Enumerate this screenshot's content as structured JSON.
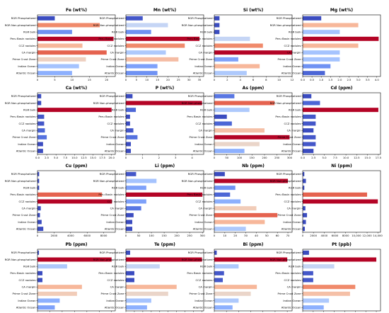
{
  "chart_data": {
    "type": "bar",
    "orientation": "horizontal",
    "categories": [
      "RGR Phosphatized",
      "RGR Non-phosphatized",
      "RGR bulk",
      "Peru Basin nodules",
      "CCZ nodules",
      "CA margin",
      "Prime Crust Zone",
      "Indian Ocean",
      "Atlantic Ocean"
    ],
    "panels": [
      {
        "title": "Fe (wt%)",
        "xlim": [
          0,
          22.5
        ],
        "ticks": [
          0,
          5,
          10,
          15,
          20
        ],
        "tick_labels": [
          "0",
          "5",
          "10",
          "15",
          "20"
        ],
        "values": [
          5,
          18,
          10,
          22,
          13,
          20,
          14,
          12,
          10
        ],
        "colors": [
          "#3b4cc0",
          "#f08a6b",
          "#6f92f3",
          "#b40426",
          "#f7b79a",
          "#e5634f",
          "#eed0c0",
          "#a5c3fe",
          "#8db0fe"
        ]
      },
      {
        "title": "Mn (wt%)",
        "xlim": [
          0,
          37
        ],
        "ticks": [
          0,
          5,
          10,
          15,
          20,
          25,
          30,
          35
        ],
        "tick_labels": [
          "0",
          "5",
          "10",
          "15",
          "20",
          "25",
          "30",
          "35"
        ],
        "values": [
          8,
          20,
          12,
          35,
          28,
          19,
          25,
          15,
          15
        ],
        "colors": [
          "#4457c9",
          "#c5d5f5",
          "#6f92f3",
          "#b40426",
          "#f08a6b",
          "#aec9fc",
          "#f5bca4",
          "#7ea1fa",
          "#6f92f3"
        ]
      },
      {
        "title": "Si (wt%)",
        "xlim": [
          0,
          12
        ],
        "ticks": [
          0,
          2,
          4,
          6,
          8,
          10,
          12
        ],
        "tick_labels": [
          "0",
          "2",
          "4",
          "6",
          "8",
          "10",
          "12"
        ],
        "values": [
          0.8,
          0.8,
          0.8,
          5.5,
          7.5,
          12,
          3.7,
          7,
          5
        ],
        "colors": [
          "#3b4cc0",
          "#3b4cc0",
          "#3b4cc0",
          "#c5d5f5",
          "#f08a6b",
          "#b40426",
          "#7ea1fa",
          "#f7b79a",
          "#aec9fc"
        ]
      },
      {
        "title": "Mg (wt%)",
        "xlim": [
          0,
          4.2
        ],
        "ticks": [
          0,
          0.5,
          1.0,
          1.5,
          2.0,
          2.5,
          3.0,
          3.5,
          4.0
        ],
        "tick_labels": [
          "0.0",
          "0.5",
          "1.0",
          "1.5",
          "2.0",
          "2.5",
          "3.0",
          "3.5",
          "4.0"
        ],
        "values": [
          1.0,
          3.0,
          2.0,
          4.1,
          3.0,
          2.0,
          2.0,
          1.5,
          1.2
        ],
        "colors": [
          "#3b4cc0",
          "#f7b79a",
          "#a5c3fe",
          "#b40426",
          "#f7b79a",
          "#a5c3fe",
          "#a5c3fe",
          "#6f92f3",
          "#4c66d6"
        ]
      },
      {
        "title": "Ca (wt%)",
        "xlim": [
          0,
          21
        ],
        "ticks": [
          0,
          2.5,
          5.0,
          7.5,
          10.0,
          12.5,
          15.0,
          17.5,
          20.0
        ],
        "tick_labels": [
          "0.0",
          "2.5",
          "5.0",
          "7.5",
          "10.0",
          "12.5",
          "15.0",
          "17.5",
          "20.0"
        ],
        "values": [
          1.0,
          1.0,
          20,
          1.8,
          1.8,
          2.0,
          2.5,
          1.5,
          1.5
        ],
        "colors": [
          "#3b4cc0",
          "#3b4cc0",
          "#b40426",
          "#4457c9",
          "#4457c9",
          "#4c66d6",
          "#5572df",
          "#3b4cc0",
          "#3b4cc0"
        ]
      },
      {
        "title": "P (wt%)",
        "xlim": [
          0,
          4.7
        ],
        "ticks": [
          0,
          1,
          2,
          3,
          4
        ],
        "tick_labels": [
          "0",
          "1",
          "2",
          "3",
          "4"
        ],
        "values": [
          0.4,
          4.6,
          0.6,
          0.25,
          0.25,
          0.45,
          0.7,
          0.3,
          0.3
        ],
        "colors": [
          "#3b4cc0",
          "#b40426",
          "#4c66d6",
          "#3b4cc0",
          "#3b4cc0",
          "#4457c9",
          "#5572df",
          "#3b4cc0",
          "#3b4cc0"
        ]
      },
      {
        "title": "As (ppm)",
        "xlim": [
          0,
          310
        ],
        "ticks": [
          0,
          50,
          100,
          150,
          200,
          250,
          300
        ],
        "tick_labels": [
          "0",
          "50",
          "100",
          "150",
          "200",
          "250",
          "300"
        ],
        "values": [
          80,
          240,
          140,
          50,
          70,
          200,
          300,
          180,
          120
        ],
        "colors": [
          "#5977e3",
          "#e5634f",
          "#aec9fc",
          "#3b4cc0",
          "#4c66d6",
          "#f5c0a7",
          "#b40426",
          "#ead5c9",
          "#8db0fe"
        ]
      },
      {
        "title": "Cd (ppm)",
        "xlim": [
          0,
          18
        ],
        "ticks": [
          0,
          2.5,
          5.0,
          7.5,
          10.0,
          12.5,
          15.0,
          17.5
        ],
        "tick_labels": [
          "0.0",
          "2.5",
          "5.0",
          "7.5",
          "10.0",
          "12.5",
          "15.0",
          "17.5"
        ],
        "values": [
          2,
          4,
          17.5,
          3,
          3,
          2.5,
          3,
          3,
          2.5
        ],
        "colors": [
          "#3b4cc0",
          "#4c66d6",
          "#b40426",
          "#4457c9",
          "#4457c9",
          "#3b4cc0",
          "#4457c9",
          "#4457c9",
          "#3b4cc0"
        ]
      },
      {
        "title": "Cu (ppm)",
        "xlim": [
          0,
          9400
        ],
        "ticks": [
          0,
          2000,
          4000,
          6000,
          8000
        ],
        "tick_labels": [
          "0",
          "2000",
          "4000",
          "6000",
          "8000"
        ],
        "values": [
          200,
          200,
          200,
          7800,
          9000,
          400,
          300,
          500,
          700
        ],
        "colors": [
          "#3b4cc0",
          "#3b4cc0",
          "#3b4cc0",
          "#e5634f",
          "#b40426",
          "#3b4cc0",
          "#3b4cc0",
          "#3b4cc0",
          "#3b4cc0"
        ]
      },
      {
        "title": "Li (ppm)",
        "xlim": [
          0,
          305
        ],
        "ticks": [
          0,
          50,
          100,
          150,
          200,
          250,
          300
        ],
        "tick_labels": [
          "0",
          "50",
          "100",
          "150",
          "200",
          "250",
          "300"
        ],
        "values": [
          40,
          120,
          80,
          300,
          80,
          60,
          30,
          25,
          25
        ],
        "colors": [
          "#4457c9",
          "#a5c3fe",
          "#7ea1fa",
          "#b40426",
          "#7ea1fa",
          "#5977e3",
          "#3b4cc0",
          "#3b4cc0",
          "#3b4cc0"
        ]
      },
      {
        "title": "Nb (ppm)",
        "xlim": [
          0,
          74
        ],
        "ticks": [
          0,
          10,
          20,
          30,
          40,
          50,
          60,
          70
        ],
        "tick_labels": [
          "0",
          "10",
          "20",
          "30",
          "40",
          "50",
          "60",
          "70"
        ],
        "values": [
          10,
          70,
          20,
          15,
          25,
          40,
          60,
          48,
          30
        ],
        "colors": [
          "#3b4cc0",
          "#b40426",
          "#6f92f3",
          "#4c66d6",
          "#8db0fe",
          "#f1ccb8",
          "#e5634f",
          "#f7b79a",
          "#aec9fc"
        ]
      },
      {
        "title": "Ni (ppm)",
        "xlim": [
          0,
          14500
        ],
        "ticks": [
          0,
          2000,
          4000,
          6000,
          8000,
          10000,
          12000,
          14000
        ],
        "tick_labels": [
          "0",
          "2000",
          "4000",
          "6000",
          "8000",
          "10,000",
          "12,000",
          "14,000"
        ],
        "values": [
          300,
          600,
          300,
          12000,
          14000,
          500,
          800,
          600,
          400
        ],
        "colors": [
          "#3b4cc0",
          "#3b4cc0",
          "#3b4cc0",
          "#e5634f",
          "#b40426",
          "#3b4cc0",
          "#3b4cc0",
          "#3b4cc0",
          "#3b4cc0"
        ]
      },
      {
        "title": "Pb (ppm)",
        "xlim": [
          0,
          3150
        ],
        "ticks": [
          0,
          500,
          1000,
          1500,
          2000,
          2500,
          3000
        ],
        "tick_labels": [
          "0",
          "500",
          "1000",
          "1500",
          "2000",
          "2500",
          "3000"
        ],
        "values": [
          60,
          3000,
          1200,
          200,
          200,
          1800,
          1600,
          900,
          700
        ],
        "colors": [
          "#3b4cc0",
          "#b40426",
          "#aec9fc",
          "#3b4cc0",
          "#3b4cc0",
          "#f7b79a",
          "#f1ccb8",
          "#8db0fe",
          "#7ea1fa"
        ]
      },
      {
        "title": "Te (ppm)",
        "xlim": [
          0,
          92
        ],
        "ticks": [
          0,
          10,
          20,
          30,
          40,
          50,
          60,
          70,
          80,
          90
        ],
        "tick_labels": [
          "0",
          "10",
          "20",
          "30",
          "40",
          "50",
          "60",
          "70",
          "80",
          "90"
        ],
        "values": [
          5,
          90,
          40,
          10,
          10,
          60,
          50,
          30,
          25
        ],
        "colors": [
          "#3b4cc0",
          "#b40426",
          "#c5d5f5",
          "#3b4cc0",
          "#3b4cc0",
          "#f7b79a",
          "#ead5c9",
          "#a5c3fe",
          "#8db0fe"
        ]
      },
      {
        "title": "Bi (ppm)",
        "xlim": [
          0,
          64
        ],
        "ticks": [
          0,
          10,
          20,
          30,
          40,
          50,
          60
        ],
        "tick_labels": [
          "0",
          "10",
          "20",
          "30",
          "40",
          "50",
          "60"
        ],
        "values": [
          2,
          60,
          20,
          8,
          7,
          35,
          30,
          20,
          15
        ],
        "colors": [
          "#3b4cc0",
          "#b40426",
          "#aec9fc",
          "#4457c9",
          "#4457c9",
          "#f7b79a",
          "#ead5c9",
          "#aec9fc",
          "#8db0fe"
        ]
      },
      {
        "title": "Pt (ppb)",
        "xlim": [
          0,
          740
        ],
        "ticks": [
          0,
          100,
          200,
          300,
          400,
          500,
          600,
          700
        ],
        "tick_labels": [
          "0",
          "100",
          "200",
          "300",
          "400",
          "500",
          "600",
          "700"
        ],
        "values": [
          60,
          700,
          300,
          100,
          100,
          500,
          450,
          250,
          200
        ],
        "colors": [
          "#3b4cc0",
          "#b40426",
          "#c5d5f5",
          "#4457c9",
          "#4457c9",
          "#f08a6b",
          "#f5c0a7",
          "#aec9fc",
          "#8db0fe"
        ]
      }
    ]
  }
}
